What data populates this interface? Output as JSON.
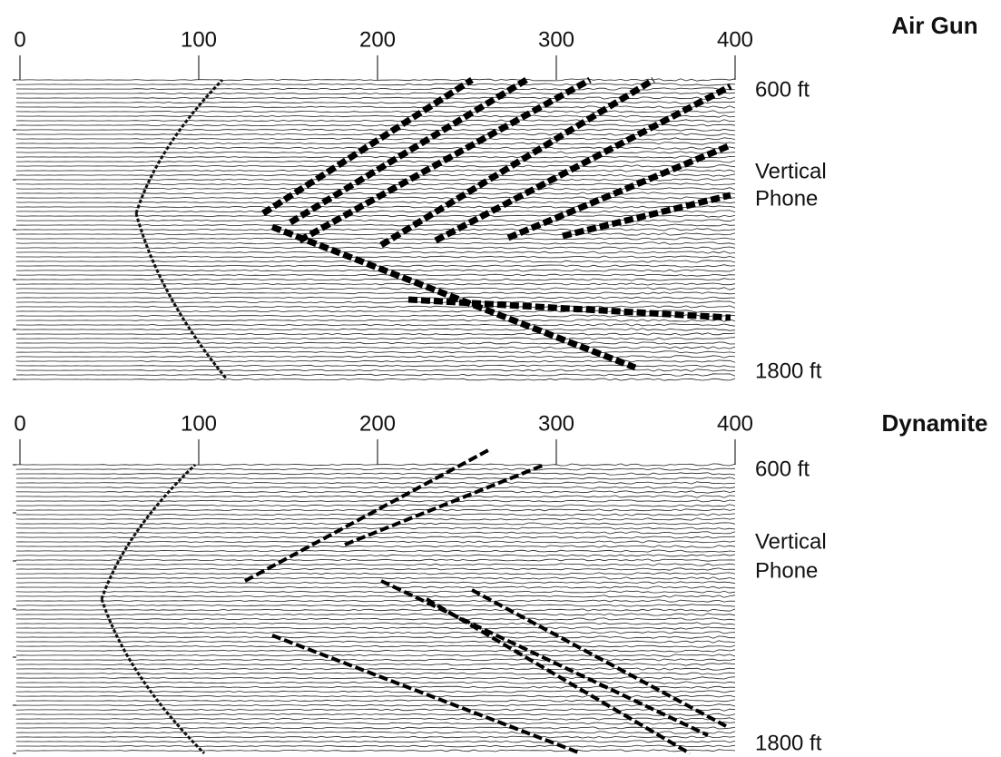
{
  "panels": [
    {
      "title": "Air Gun",
      "x_ticks": [
        0,
        100,
        200,
        300,
        400
      ],
      "side_labels": [
        "600 ft",
        "Vertical",
        "Phone",
        "1800 ft"
      ]
    },
    {
      "title": "Dynamite",
      "x_ticks": [
        0,
        100,
        200,
        300,
        400
      ],
      "side_labels": [
        "600 ft",
        "Vertical",
        "Phone",
        "1800 ft"
      ]
    }
  ]
}
